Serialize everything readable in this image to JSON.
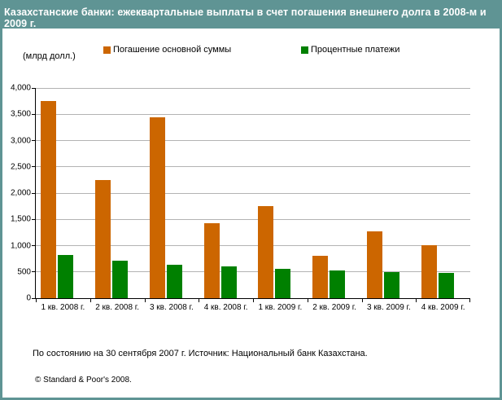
{
  "window": {
    "title": "Казахстанские банки: ежеквартальные выплаты в счет погашения внешнего долга в 2008-м и 2009 г."
  },
  "unit_label": "(млрд долл.)",
  "legend": [
    {
      "label": "Погашение основной суммы",
      "color": "#CC6600"
    },
    {
      "label": "Процентные платежи",
      "color": "#008000"
    }
  ],
  "footer": {
    "source": "По состоянию на 30 сентября 2007 г. Источник: Национальный банк Казахстана.",
    "copyright": "© Standard & Poor's 2008."
  },
  "colors": {
    "frame": "#5F9494",
    "panel": "#FFFFFF",
    "gridline": "#B3B3B3",
    "bar_principal": "#CC6600",
    "bar_interest": "#008000"
  },
  "chart_data": {
    "type": "bar",
    "title": "Казахстанские банки: ежеквартальные выплаты в счет погашения внешнего долга в 2008-м и 2009 г.",
    "categories": [
      "1 кв. 2008 г.",
      "2 кв. 2008 г.",
      "3 кв. 2008 г.",
      "4 кв. 2008 г.",
      "1 кв. 2009 г.",
      "2 кв. 2009 г.",
      "3 кв. 2009 г.",
      "4 кв. 2009 г."
    ],
    "series": [
      {
        "name": "Погашение основной суммы",
        "color": "#CC6600",
        "values": [
          3750,
          2250,
          3440,
          1430,
          1750,
          810,
          1270,
          1010
        ]
      },
      {
        "name": "Процентные платежи",
        "color": "#008000",
        "values": [
          820,
          710,
          640,
          600,
          560,
          530,
          500,
          480
        ]
      }
    ],
    "ylabel": "(млрд долл.)",
    "ylim": [
      0,
      4000
    ],
    "ytick_step": 500,
    "grid": true,
    "legend_position": "top"
  }
}
